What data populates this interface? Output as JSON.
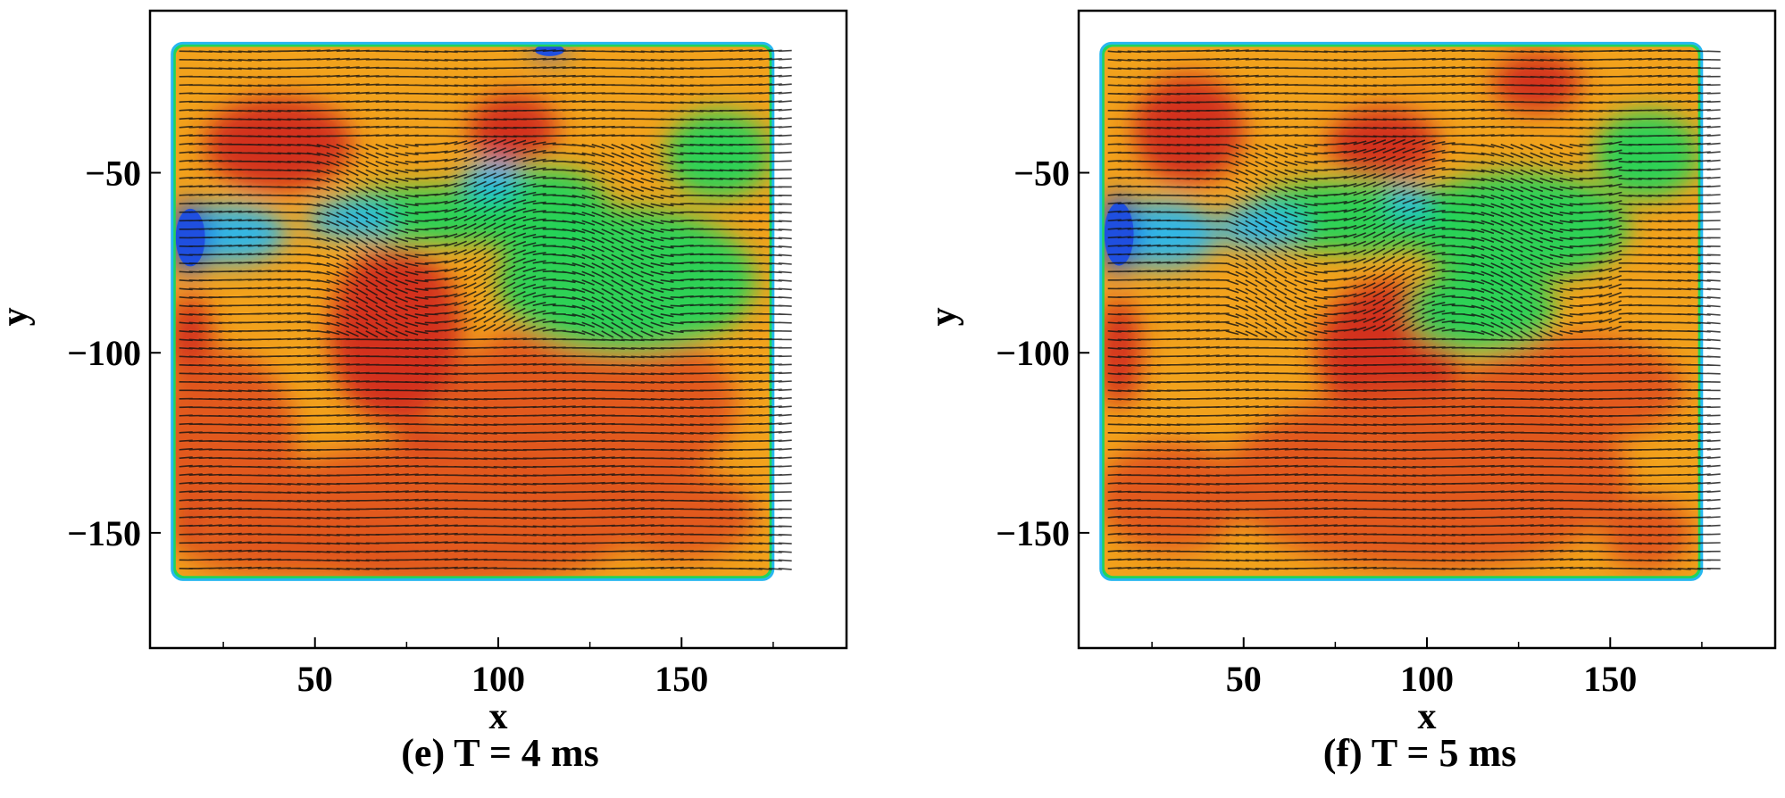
{
  "chart_data": [
    {
      "type": "heatmap",
      "subtype": "velocity contour with vector field",
      "caption": "(e) T = 4 ms",
      "xlabel": "x",
      "ylabel": "y",
      "xlim": [
        5,
        195
      ],
      "ylim": [
        -182,
        -5
      ],
      "xticks": [
        50,
        100,
        150
      ],
      "yticks": [
        -50,
        -100,
        -150
      ],
      "xtick_labels": [
        "50",
        "100",
        "150"
      ],
      "ytick_labels": [
        "−50",
        "−100",
        "−150"
      ],
      "domain": {
        "x": [
          12,
          174
        ],
        "y": [
          -162,
          -15
        ]
      },
      "inlet": {
        "x": 12,
        "y_range": [
          -55,
          -80
        ]
      },
      "colormap": [
        "#1f4fe0",
        "#27b7f0",
        "#22d45a",
        "#d8e02a",
        "#f2a21c",
        "#e0551d",
        "#d12a1a"
      ],
      "regions": [
        {
          "level": "high",
          "x": 40,
          "y": -42,
          "rx": 20,
          "ry": 13
        },
        {
          "level": "high",
          "x": 16,
          "y": -98,
          "rx": 6,
          "ry": 14
        },
        {
          "level": "high",
          "x": 72,
          "y": -95,
          "rx": 18,
          "ry": 25
        },
        {
          "level": "high",
          "x": 104,
          "y": -38,
          "rx": 12,
          "ry": 10
        },
        {
          "level": "high",
          "x": 80,
          "y": -125,
          "rx": 8,
          "ry": 5
        },
        {
          "level": "high",
          "x": 15,
          "y": -145,
          "rx": 4,
          "ry": 10
        },
        {
          "level": "mid",
          "x": 25,
          "y": -125,
          "rx": 20,
          "ry": 25
        },
        {
          "level": "mid",
          "x": 85,
          "y": -145,
          "rx": 55,
          "ry": 20
        },
        {
          "level": "mid",
          "x": 125,
          "y": -115,
          "rx": 40,
          "ry": 25
        },
        {
          "level": "mid",
          "x": 150,
          "y": -145,
          "rx": 20,
          "ry": 12
        },
        {
          "level": "mid",
          "x": 45,
          "y": -155,
          "rx": 30,
          "ry": 7
        },
        {
          "level": "low",
          "x": 80,
          "y": -62,
          "rx": 28,
          "ry": 8
        },
        {
          "level": "low",
          "x": 135,
          "y": -80,
          "rx": 35,
          "ry": 20
        },
        {
          "level": "low",
          "x": 160,
          "y": -45,
          "rx": 14,
          "ry": 12
        },
        {
          "level": "low",
          "x": 110,
          "y": -60,
          "rx": 20,
          "ry": 12
        },
        {
          "level": "vlow",
          "x": 27,
          "y": -67,
          "rx": 15,
          "ry": 8
        },
        {
          "level": "vlow",
          "x": 60,
          "y": -63,
          "rx": 12,
          "ry": 5
        },
        {
          "level": "vlow",
          "x": 98,
          "y": -52,
          "rx": 8,
          "ry": 5
        },
        {
          "level": "jet",
          "x": 16,
          "y": -68,
          "rx": 5,
          "ry": 10
        },
        {
          "level": "jet",
          "x": 114,
          "y": -16,
          "rx": 5,
          "ry": 2
        }
      ]
    },
    {
      "type": "heatmap",
      "subtype": "velocity contour with vector field",
      "caption": "(f) T = 5 ms",
      "xlabel": "x",
      "ylabel": "y",
      "xlim": [
        5,
        195
      ],
      "ylim": [
        -182,
        -5
      ],
      "xticks": [
        50,
        100,
        150
      ],
      "yticks": [
        -50,
        -100,
        -150
      ],
      "xtick_labels": [
        "50",
        "100",
        "150"
      ],
      "ytick_labels": [
        "−50",
        "−100",
        "−150"
      ],
      "domain": {
        "x": [
          12,
          174
        ],
        "y": [
          -162,
          -15
        ]
      },
      "inlet": {
        "x": 12,
        "y_range": [
          -55,
          -80
        ]
      },
      "colormap": [
        "#1f4fe0",
        "#27b7f0",
        "#22d45a",
        "#d8e02a",
        "#f2a21c",
        "#e0551d",
        "#d12a1a"
      ],
      "regions": [
        {
          "level": "high",
          "x": 35,
          "y": -38,
          "rx": 15,
          "ry": 15
        },
        {
          "level": "high",
          "x": 88,
          "y": -42,
          "rx": 15,
          "ry": 10
        },
        {
          "level": "high",
          "x": 130,
          "y": -25,
          "rx": 12,
          "ry": 8
        },
        {
          "level": "high",
          "x": 90,
          "y": -100,
          "rx": 20,
          "ry": 20
        },
        {
          "level": "high",
          "x": 16,
          "y": -100,
          "rx": 6,
          "ry": 15
        },
        {
          "level": "high",
          "x": 70,
          "y": -127,
          "rx": 6,
          "ry": 5
        },
        {
          "level": "mid",
          "x": 100,
          "y": -135,
          "rx": 55,
          "ry": 25
        },
        {
          "level": "mid",
          "x": 140,
          "y": -110,
          "rx": 30,
          "ry": 15
        },
        {
          "level": "mid",
          "x": 30,
          "y": -140,
          "rx": 20,
          "ry": 15
        },
        {
          "level": "mid",
          "x": 160,
          "y": -150,
          "rx": 12,
          "ry": 10
        },
        {
          "level": "low",
          "x": 80,
          "y": -62,
          "rx": 30,
          "ry": 10
        },
        {
          "level": "low",
          "x": 125,
          "y": -65,
          "rx": 30,
          "ry": 15
        },
        {
          "level": "low",
          "x": 160,
          "y": -45,
          "rx": 14,
          "ry": 12
        },
        {
          "level": "low",
          "x": 115,
          "y": -88,
          "rx": 20,
          "ry": 12
        },
        {
          "level": "vlow",
          "x": 28,
          "y": -67,
          "rx": 15,
          "ry": 9
        },
        {
          "level": "vlow",
          "x": 55,
          "y": -65,
          "rx": 12,
          "ry": 6
        },
        {
          "level": "vlow",
          "x": 95,
          "y": -58,
          "rx": 6,
          "ry": 4
        },
        {
          "level": "jet",
          "x": 16,
          "y": -67,
          "rx": 5,
          "ry": 11
        }
      ]
    }
  ]
}
